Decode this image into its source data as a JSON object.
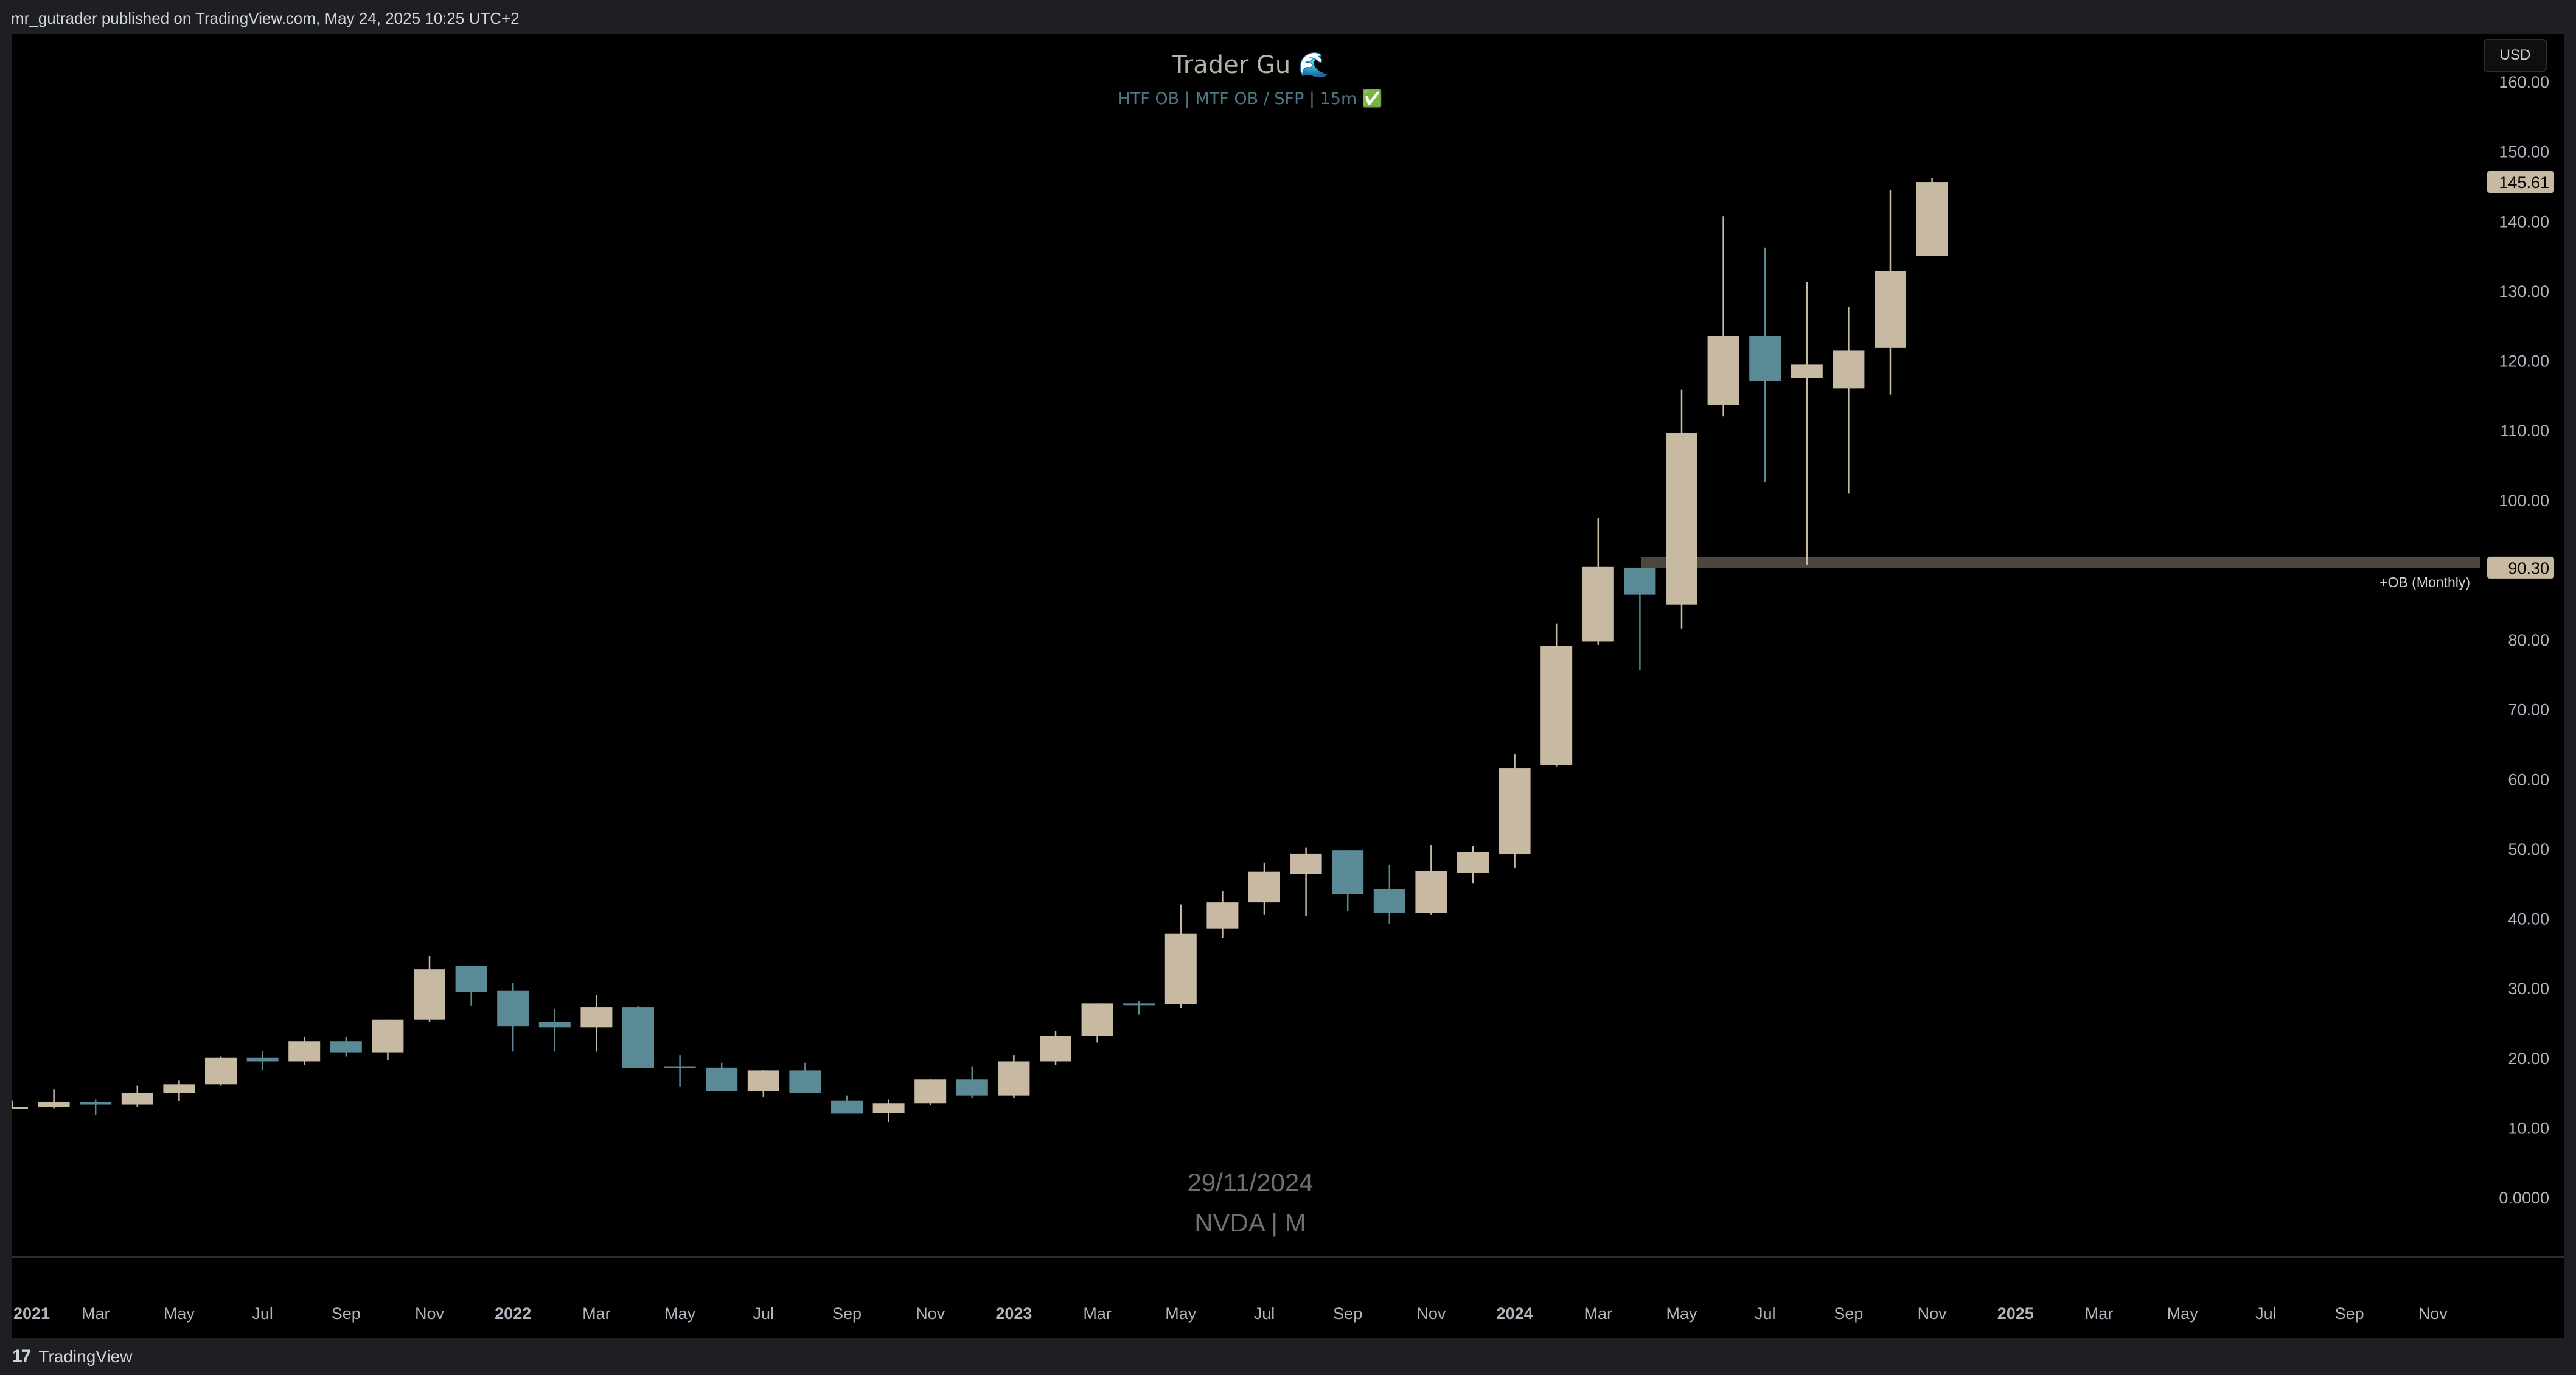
{
  "header": {
    "published_text": "mr_gutrader published on TradingView.com, May 24, 2025 10:25 UTC+2"
  },
  "footer": {
    "brand": "TradingView",
    "logo_glyph": "17"
  },
  "currency": "USD",
  "colors": {
    "up": "#c8b9a2",
    "down": "#5a8a96",
    "background": "#000000",
    "ob_zone": "#8a8070"
  },
  "chart_data": {
    "type": "candlestick",
    "title": "Trader Gu 🌊",
    "subtitle": "HTF OB  |  MTF OB / SFP  |  15m ✅",
    "watermark_date": "29/11/2024",
    "watermark_symbol": "NVDA | M",
    "symbol": "NVDA",
    "interval": "M",
    "ylim": [
      0,
      162
    ],
    "y_ticks": [
      "0.0000",
      "10.00",
      "20.00",
      "30.00",
      "40.00",
      "50.00",
      "60.00",
      "70.00",
      "80.00",
      "90.00",
      "100.00",
      "110.00",
      "120.00",
      "130.00",
      "140.00",
      "150.00",
      "160.00"
    ],
    "y_tick_values": [
      0,
      10,
      20,
      30,
      40,
      50,
      60,
      70,
      80,
      90,
      100,
      110,
      120,
      130,
      140,
      150,
      160
    ],
    "x_labels": [
      {
        "label": "2021",
        "bold": true
      },
      {
        "label": "Mar",
        "bold": false
      },
      {
        "label": "May",
        "bold": false
      },
      {
        "label": "Jul",
        "bold": false
      },
      {
        "label": "Sep",
        "bold": false
      },
      {
        "label": "Nov",
        "bold": false
      },
      {
        "label": "2022",
        "bold": true
      },
      {
        "label": "Mar",
        "bold": false
      },
      {
        "label": "May",
        "bold": false
      },
      {
        "label": "Jul",
        "bold": false
      },
      {
        "label": "Sep",
        "bold": false
      },
      {
        "label": "Nov",
        "bold": false
      },
      {
        "label": "2023",
        "bold": true
      },
      {
        "label": "Mar",
        "bold": false
      },
      {
        "label": "May",
        "bold": false
      },
      {
        "label": "Jul",
        "bold": false
      },
      {
        "label": "Sep",
        "bold": false
      },
      {
        "label": "Nov",
        "bold": false
      },
      {
        "label": "2024",
        "bold": true
      },
      {
        "label": "Mar",
        "bold": false
      },
      {
        "label": "May",
        "bold": false
      },
      {
        "label": "Jul",
        "bold": false
      },
      {
        "label": "Sep",
        "bold": false
      },
      {
        "label": "Nov",
        "bold": false
      },
      {
        "label": "2025",
        "bold": true
      },
      {
        "label": "Mar",
        "bold": false
      },
      {
        "label": "May",
        "bold": false
      },
      {
        "label": "Jul",
        "bold": false
      },
      {
        "label": "Sep",
        "bold": false
      },
      {
        "label": "Nov",
        "bold": false
      }
    ],
    "candles": [
      {
        "date": "2021-01",
        "open": 13.0,
        "high": 13.9,
        "low": 12.8,
        "close": 13.0
      },
      {
        "date": "2021-02",
        "open": 13.0,
        "high": 15.5,
        "low": 12.8,
        "close": 13.7
      },
      {
        "date": "2021-03",
        "open": 13.7,
        "high": 14.0,
        "low": 11.8,
        "close": 13.3
      },
      {
        "date": "2021-04",
        "open": 13.3,
        "high": 16.0,
        "low": 13.0,
        "close": 15.0
      },
      {
        "date": "2021-05",
        "open": 15.0,
        "high": 16.8,
        "low": 13.8,
        "close": 16.2
      },
      {
        "date": "2021-06",
        "open": 16.2,
        "high": 20.2,
        "low": 16.0,
        "close": 20.0
      },
      {
        "date": "2021-07",
        "open": 20.0,
        "high": 21.0,
        "low": 18.2,
        "close": 19.5
      },
      {
        "date": "2021-08",
        "open": 19.5,
        "high": 23.0,
        "low": 19.0,
        "close": 22.4
      },
      {
        "date": "2021-09",
        "open": 22.4,
        "high": 23.0,
        "low": 20.2,
        "close": 20.8
      },
      {
        "date": "2021-10",
        "open": 20.8,
        "high": 25.5,
        "low": 19.7,
        "close": 25.5
      },
      {
        "date": "2021-11",
        "open": 25.5,
        "high": 34.6,
        "low": 25.2,
        "close": 32.7
      },
      {
        "date": "2021-12",
        "open": 33.2,
        "high": 33.2,
        "low": 27.5,
        "close": 29.4
      },
      {
        "date": "2022-01",
        "open": 29.6,
        "high": 30.7,
        "low": 20.9,
        "close": 24.5
      },
      {
        "date": "2022-02",
        "open": 25.2,
        "high": 27.0,
        "low": 20.9,
        "close": 24.4
      },
      {
        "date": "2022-03",
        "open": 24.4,
        "high": 29.0,
        "low": 20.9,
        "close": 27.3
      },
      {
        "date": "2022-04",
        "open": 27.3,
        "high": 27.4,
        "low": 18.5,
        "close": 18.5
      },
      {
        "date": "2022-05",
        "open": 18.8,
        "high": 20.4,
        "low": 15.9,
        "close": 18.6
      },
      {
        "date": "2022-06",
        "open": 18.6,
        "high": 19.3,
        "low": 15.2,
        "close": 15.2
      },
      {
        "date": "2022-07",
        "open": 15.2,
        "high": 18.3,
        "low": 14.4,
        "close": 18.2
      },
      {
        "date": "2022-08",
        "open": 18.2,
        "high": 19.3,
        "low": 15.0,
        "close": 15.0
      },
      {
        "date": "2022-09",
        "open": 13.9,
        "high": 14.6,
        "low": 12.0,
        "close": 12.0
      },
      {
        "date": "2022-10",
        "open": 12.1,
        "high": 14.0,
        "low": 10.8,
        "close": 13.5
      },
      {
        "date": "2022-11",
        "open": 13.5,
        "high": 17.0,
        "low": 13.2,
        "close": 16.9
      },
      {
        "date": "2022-12",
        "open": 16.9,
        "high": 18.8,
        "low": 14.3,
        "close": 14.6
      },
      {
        "date": "2023-01",
        "open": 14.6,
        "high": 20.4,
        "low": 14.3,
        "close": 19.5
      },
      {
        "date": "2023-02",
        "open": 19.5,
        "high": 23.9,
        "low": 19.0,
        "close": 23.2
      },
      {
        "date": "2023-03",
        "open": 23.2,
        "high": 27.8,
        "low": 22.2,
        "close": 27.8
      },
      {
        "date": "2023-04",
        "open": 27.8,
        "high": 28.1,
        "low": 26.2,
        "close": 27.7
      },
      {
        "date": "2023-05",
        "open": 27.7,
        "high": 42.0,
        "low": 27.2,
        "close": 37.8
      },
      {
        "date": "2023-06",
        "open": 38.5,
        "high": 43.9,
        "low": 37.2,
        "close": 42.3
      },
      {
        "date": "2023-07",
        "open": 42.3,
        "high": 48.0,
        "low": 40.5,
        "close": 46.7
      },
      {
        "date": "2023-08",
        "open": 46.4,
        "high": 50.2,
        "low": 40.3,
        "close": 49.3
      },
      {
        "date": "2023-09",
        "open": 49.8,
        "high": 49.8,
        "low": 41.0,
        "close": 43.5
      },
      {
        "date": "2023-10",
        "open": 44.2,
        "high": 47.7,
        "low": 39.2,
        "close": 40.8
      },
      {
        "date": "2023-11",
        "open": 40.8,
        "high": 50.5,
        "low": 40.5,
        "close": 46.8
      },
      {
        "date": "2023-12",
        "open": 46.5,
        "high": 50.4,
        "low": 45.0,
        "close": 49.5
      },
      {
        "date": "2024-01",
        "open": 49.2,
        "high": 63.5,
        "low": 47.3,
        "close": 61.5
      },
      {
        "date": "2024-02",
        "open": 62.0,
        "high": 82.3,
        "low": 61.8,
        "close": 79.1
      },
      {
        "date": "2024-03",
        "open": 79.7,
        "high": 97.4,
        "low": 79.2,
        "close": 90.4
      },
      {
        "date": "2024-04",
        "open": 90.3,
        "high": 90.3,
        "low": 75.6,
        "close": 86.4
      },
      {
        "date": "2024-05",
        "open": 85.0,
        "high": 115.8,
        "low": 81.5,
        "close": 109.6
      },
      {
        "date": "2024-06",
        "open": 113.6,
        "high": 140.7,
        "low": 112.0,
        "close": 123.5
      },
      {
        "date": "2024-07",
        "open": 123.5,
        "high": 136.2,
        "low": 102.5,
        "close": 117.0
      },
      {
        "date": "2024-08",
        "open": 117.5,
        "high": 131.3,
        "low": 90.7,
        "close": 119.4
      },
      {
        "date": "2024-09",
        "open": 116.0,
        "high": 127.7,
        "low": 100.9,
        "close": 121.4
      },
      {
        "date": "2024-10",
        "open": 121.8,
        "high": 144.4,
        "low": 115.1,
        "close": 132.8
      },
      {
        "date": "2024-11",
        "open": 135.0,
        "high": 146.2,
        "low": 135.0,
        "close": 145.6
      }
    ],
    "order_block": {
      "label": "+OB (Monthly)",
      "top": 91.8,
      "bottom": 90.3,
      "start_date": "2024-04"
    },
    "price_labels": [
      {
        "value": 145.61,
        "text": "145.61"
      },
      {
        "value": 90.3,
        "text": "90.30"
      }
    ]
  }
}
